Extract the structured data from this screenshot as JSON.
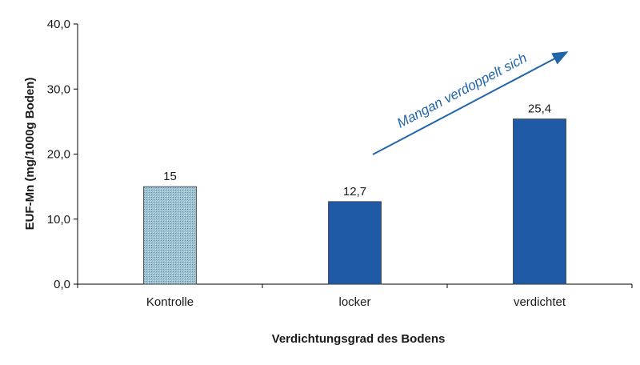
{
  "chart_data": {
    "type": "bar",
    "categories": [
      "Kontrolle",
      "locker",
      "verdichtet"
    ],
    "values": [
      15,
      12.7,
      25.4
    ],
    "value_labels": [
      "15",
      "12,7",
      "25,4"
    ],
    "bar_colors": [
      "#8fb6c8",
      "#1f5aa6",
      "#1f5aa6"
    ],
    "bar_patterns": [
      "crosshatch",
      "solid",
      "solid"
    ],
    "xlabel": "Verdichtungsgrad des Bodens",
    "ylabel": "EUF-Mn (mg/1000g Boden)",
    "ylim": [
      0,
      40
    ],
    "yticks": [
      0,
      10,
      20,
      30,
      40
    ],
    "ytick_labels": [
      "0,0",
      "10,0",
      "20,0",
      "30,0",
      "40,0"
    ],
    "grid": false,
    "annotation": {
      "text": "Mangan verdoppelt sich",
      "color": "#2266a8",
      "arrow": true
    }
  }
}
